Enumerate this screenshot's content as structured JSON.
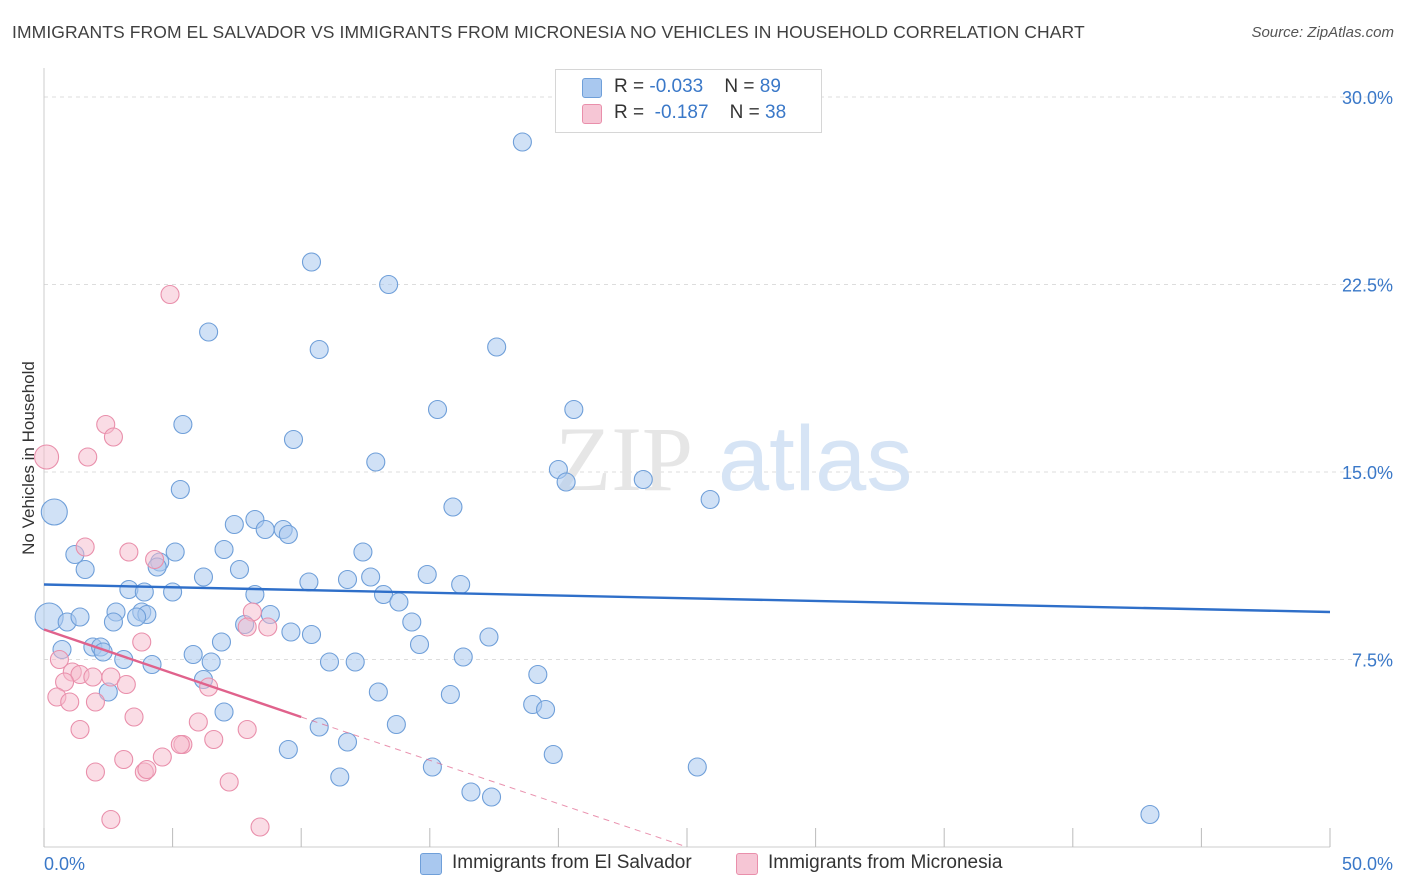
{
  "title": "IMMIGRANTS FROM EL SALVADOR VS IMMIGRANTS FROM MICRONESIA NO VEHICLES IN HOUSEHOLD CORRELATION CHART",
  "source": "Source: ZipAtlas.com",
  "watermark": {
    "zip": "ZIP",
    "atlas": "atlas"
  },
  "colors": {
    "blue_fill": "#a9c8ef",
    "blue_stroke": "#6f9fd9",
    "blue_line": "#2f6fc9",
    "pink_fill": "#f6b9cb",
    "pink_stroke": "#e98fab",
    "pink_line": "#e0628c",
    "tick_text": "#3a78c8",
    "grid": "#dddddd"
  },
  "legend_top": {
    "rows": [
      {
        "r_label": "R = ",
        "r_value": "-0.033",
        "n_label": "N = ",
        "n_value": "89"
      },
      {
        "r_label": "R = ",
        "r_value": "-0.187",
        "n_label": "N = ",
        "n_value": "38"
      }
    ]
  },
  "legend_bottom": [
    "Immigrants from El Salvador",
    "Immigrants from Micronesia"
  ],
  "chart_data": {
    "type": "scatter",
    "title": "IMMIGRANTS FROM EL SALVADOR VS IMMIGRANTS FROM MICRONESIA NO VEHICLES IN HOUSEHOLD CORRELATION CHART",
    "xlabel": "",
    "ylabel": "No Vehicles in Household",
    "xlim": [
      0,
      50
    ],
    "ylim": [
      0,
      30.5
    ],
    "x_tick_labels": [
      "0.0%",
      "50.0%"
    ],
    "y_ticks": [
      7.5,
      15.0,
      22.5,
      30.0
    ],
    "y_tick_labels": [
      "7.5%",
      "15.0%",
      "22.5%",
      "30.0%"
    ],
    "grid": true,
    "legend_placement": "bottom",
    "series": [
      {
        "name": "Immigrants from El Salvador",
        "r": -0.033,
        "n": 89,
        "trend": {
          "x": [
            0,
            50
          ],
          "y": [
            10.5,
            9.4
          ]
        },
        "points": [
          [
            18.6,
            28.2
          ],
          [
            10.4,
            23.4
          ],
          [
            13.4,
            22.5
          ],
          [
            6.4,
            20.6
          ],
          [
            10.7,
            19.9
          ],
          [
            17.6,
            20.0
          ],
          [
            15.3,
            17.5
          ],
          [
            20.6,
            17.5
          ],
          [
            5.4,
            16.9
          ],
          [
            9.7,
            16.3
          ],
          [
            12.9,
            15.4
          ],
          [
            20.0,
            15.1
          ],
          [
            20.3,
            14.6
          ],
          [
            23.3,
            14.7
          ],
          [
            5.3,
            14.3
          ],
          [
            15.9,
            13.6
          ],
          [
            25.9,
            13.9
          ],
          [
            0.4,
            13.4
          ],
          [
            7.4,
            12.9
          ],
          [
            8.2,
            13.1
          ],
          [
            8.6,
            12.7
          ],
          [
            9.3,
            12.7
          ],
          [
            9.5,
            12.5
          ],
          [
            1.2,
            11.7
          ],
          [
            5.1,
            11.8
          ],
          [
            4.5,
            11.4
          ],
          [
            7.0,
            11.9
          ],
          [
            12.4,
            11.8
          ],
          [
            1.6,
            11.1
          ],
          [
            4.4,
            11.2
          ],
          [
            7.6,
            11.1
          ],
          [
            6.2,
            10.8
          ],
          [
            11.8,
            10.7
          ],
          [
            12.7,
            10.8
          ],
          [
            14.9,
            10.9
          ],
          [
            10.3,
            10.6
          ],
          [
            16.2,
            10.5
          ],
          [
            3.3,
            10.3
          ],
          [
            3.9,
            10.2
          ],
          [
            5.0,
            10.2
          ],
          [
            8.2,
            10.1
          ],
          [
            13.2,
            10.1
          ],
          [
            13.8,
            9.8
          ],
          [
            2.8,
            9.4
          ],
          [
            3.8,
            9.4
          ],
          [
            4.0,
            9.3
          ],
          [
            8.8,
            9.3
          ],
          [
            0.2,
            9.2
          ],
          [
            0.9,
            9.0
          ],
          [
            1.4,
            9.2
          ],
          [
            2.7,
            9.0
          ],
          [
            3.6,
            9.2
          ],
          [
            14.3,
            9.0
          ],
          [
            7.8,
            8.9
          ],
          [
            9.6,
            8.6
          ],
          [
            10.4,
            8.5
          ],
          [
            17.3,
            8.4
          ],
          [
            6.9,
            8.2
          ],
          [
            14.6,
            8.1
          ],
          [
            0.7,
            7.9
          ],
          [
            1.9,
            8.0
          ],
          [
            2.2,
            8.0
          ],
          [
            2.3,
            7.8
          ],
          [
            3.1,
            7.5
          ],
          [
            5.8,
            7.7
          ],
          [
            11.1,
            7.4
          ],
          [
            12.1,
            7.4
          ],
          [
            16.3,
            7.6
          ],
          [
            4.2,
            7.3
          ],
          [
            6.5,
            7.4
          ],
          [
            19.2,
            6.9
          ],
          [
            6.2,
            6.7
          ],
          [
            2.5,
            6.2
          ],
          [
            13.0,
            6.2
          ],
          [
            15.8,
            6.1
          ],
          [
            19.0,
            5.7
          ],
          [
            19.5,
            5.5
          ],
          [
            7.0,
            5.4
          ],
          [
            13.7,
            4.9
          ],
          [
            10.7,
            4.8
          ],
          [
            11.8,
            4.2
          ],
          [
            9.5,
            3.9
          ],
          [
            19.8,
            3.7
          ],
          [
            25.4,
            3.2
          ],
          [
            15.1,
            3.2
          ],
          [
            11.5,
            2.8
          ],
          [
            16.6,
            2.2
          ],
          [
            17.4,
            2.0
          ],
          [
            43.0,
            1.3
          ]
        ]
      },
      {
        "name": "Immigrants from Micronesia",
        "r": -0.187,
        "n": 38,
        "trend": {
          "x": [
            0,
            10
          ],
          "y": [
            8.7,
            5.2
          ],
          "dashed_to": {
            "x": 25,
            "y": 0
          }
        },
        "points": [
          [
            4.9,
            22.1
          ],
          [
            2.4,
            16.9
          ],
          [
            2.7,
            16.4
          ],
          [
            1.7,
            15.6
          ],
          [
            0.1,
            15.6
          ],
          [
            1.6,
            12.0
          ],
          [
            3.3,
            11.8
          ],
          [
            4.3,
            11.5
          ],
          [
            8.1,
            9.4
          ],
          [
            7.9,
            8.8
          ],
          [
            8.7,
            8.8
          ],
          [
            3.8,
            8.2
          ],
          [
            0.6,
            7.5
          ],
          [
            1.1,
            7.0
          ],
          [
            1.4,
            6.9
          ],
          [
            2.6,
            6.8
          ],
          [
            0.8,
            6.6
          ],
          [
            1.9,
            6.8
          ],
          [
            3.2,
            6.5
          ],
          [
            6.4,
            6.4
          ],
          [
            0.5,
            6.0
          ],
          [
            1.0,
            5.8
          ],
          [
            2.0,
            5.8
          ],
          [
            3.5,
            5.2
          ],
          [
            6.0,
            5.0
          ],
          [
            1.4,
            4.7
          ],
          [
            7.9,
            4.7
          ],
          [
            6.6,
            4.3
          ],
          [
            5.4,
            4.1
          ],
          [
            5.3,
            4.1
          ],
          [
            3.1,
            3.5
          ],
          [
            4.6,
            3.6
          ],
          [
            2.0,
            3.0
          ],
          [
            3.9,
            3.0
          ],
          [
            4.0,
            3.1
          ],
          [
            7.2,
            2.6
          ],
          [
            2.6,
            1.1
          ],
          [
            8.4,
            0.8
          ]
        ]
      }
    ]
  }
}
